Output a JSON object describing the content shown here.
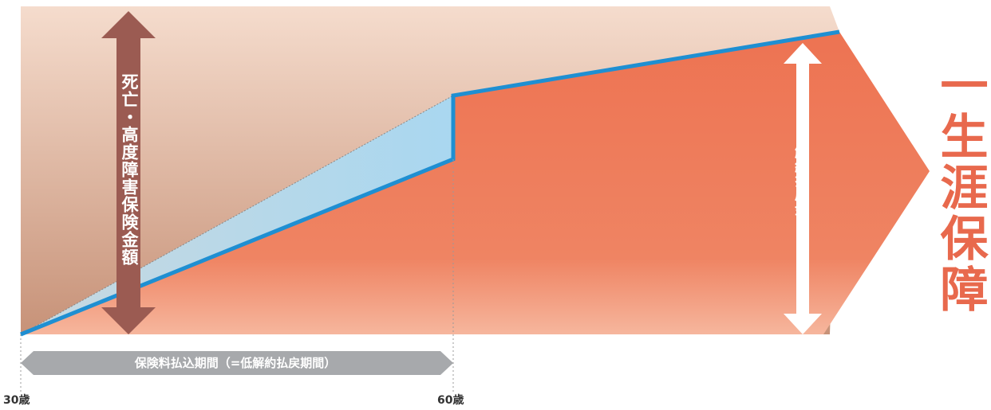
{
  "labels": {
    "death_benefit": "死亡・高度障害保険金額",
    "surrender_value": "解約払戻金",
    "lifetime_coverage": "一生涯保障",
    "payment_period": "保険料払込期間（=低解約払戻期間）",
    "age_start": "30歳",
    "age_end": "60歳"
  },
  "colors": {
    "background_top": "#f3d4c6",
    "background_bottom": "#c99379",
    "surrender_area": "#ee7a57",
    "surrender_area_light": "#f4a88c",
    "boost_area": "#b3d9ee",
    "value_line": "#1f8fd2",
    "death_arrow": "#9b5b52",
    "surrender_arrow": "#ffffff",
    "period_bar": "#a7a9ac",
    "lifetime_text": "#e8694d"
  }
}
